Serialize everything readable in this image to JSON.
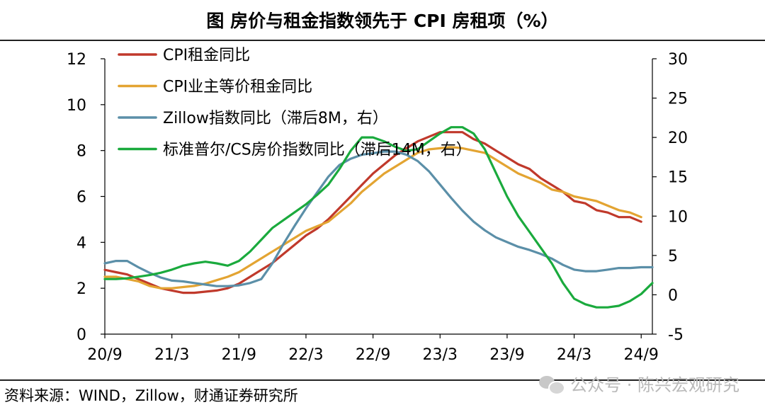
{
  "title": "图  房价与租金指数领先于 CPI 房租项（%）",
  "source": "资料来源：WIND，Zillow，财通证券研究所",
  "watermark": {
    "text": "公众号 · 陈兴宏观研究",
    "icon": "wechat-icon"
  },
  "chart_data": {
    "type": "line",
    "title": "",
    "xlabel": "",
    "ylabel_left": "",
    "ylabel_right": "",
    "ylim_left": [
      0,
      12
    ],
    "yticks_left": [
      0,
      2,
      4,
      6,
      8,
      10,
      12
    ],
    "ylim_right": [
      -5,
      30
    ],
    "yticks_right": [
      -5,
      0,
      5,
      10,
      15,
      20,
      25,
      30
    ],
    "xlim": [
      0,
      49
    ],
    "xtick_labels": [
      "20/9",
      "21/3",
      "21/9",
      "22/3",
      "22/9",
      "23/3",
      "23/9",
      "24/3",
      "24/9"
    ],
    "xtick_positions": [
      0,
      6,
      12,
      18,
      24,
      30,
      36,
      42,
      48
    ],
    "legend_position": "top-left",
    "series": [
      {
        "name": "CPI租金同比",
        "color": "#c0392b",
        "axis": "left",
        "x": [
          0,
          1,
          2,
          3,
          4,
          5,
          6,
          7,
          8,
          9,
          10,
          11,
          12,
          13,
          14,
          15,
          16,
          17,
          18,
          19,
          20,
          21,
          22,
          23,
          24,
          25,
          26,
          27,
          28,
          29,
          30,
          31,
          32,
          33,
          34,
          35,
          36,
          37,
          38,
          39,
          40,
          41,
          42,
          43,
          44,
          45,
          46,
          47,
          48
        ],
        "values": [
          2.8,
          2.7,
          2.6,
          2.4,
          2.2,
          2.0,
          1.9,
          1.8,
          1.8,
          1.85,
          1.9,
          2.0,
          2.2,
          2.5,
          2.8,
          3.1,
          3.5,
          3.9,
          4.3,
          4.6,
          5.0,
          5.5,
          6.0,
          6.5,
          7.0,
          7.4,
          7.8,
          8.1,
          8.4,
          8.6,
          8.8,
          8.8,
          8.8,
          8.5,
          8.3,
          8.0,
          7.7,
          7.4,
          7.2,
          6.8,
          6.5,
          6.2,
          5.8,
          5.7,
          5.4,
          5.3,
          5.1,
          5.1,
          4.9
        ]
      },
      {
        "name": "CPI业主等价租金同比",
        "color": "#e3a432",
        "axis": "left",
        "x": [
          0,
          1,
          2,
          3,
          4,
          5,
          6,
          7,
          8,
          9,
          10,
          11,
          12,
          13,
          14,
          15,
          16,
          17,
          18,
          19,
          20,
          21,
          22,
          23,
          24,
          25,
          26,
          27,
          28,
          29,
          30,
          31,
          32,
          33,
          34,
          35,
          36,
          37,
          38,
          39,
          40,
          41,
          42,
          43,
          44,
          45,
          46,
          47,
          48
        ],
        "values": [
          2.5,
          2.5,
          2.4,
          2.3,
          2.1,
          2.0,
          2.0,
          2.05,
          2.1,
          2.2,
          2.35,
          2.5,
          2.7,
          3.0,
          3.3,
          3.6,
          3.9,
          4.2,
          4.5,
          4.7,
          4.9,
          5.3,
          5.7,
          6.2,
          6.6,
          7.0,
          7.3,
          7.6,
          7.9,
          8.05,
          8.1,
          8.15,
          8.1,
          8.0,
          7.9,
          7.6,
          7.3,
          7.0,
          6.8,
          6.6,
          6.3,
          6.2,
          6.0,
          5.9,
          5.8,
          5.6,
          5.4,
          5.3,
          5.1
        ]
      },
      {
        "name": "Zillow指数同比（滞后8M，右）",
        "color": "#5b8fa8",
        "axis": "right",
        "x": [
          0,
          1,
          2,
          3,
          4,
          5,
          6,
          7,
          8,
          9,
          10,
          11,
          12,
          13,
          14,
          15,
          16,
          17,
          18,
          19,
          20,
          21,
          22,
          23,
          24,
          25,
          26,
          27,
          28,
          29,
          30,
          31,
          32,
          33,
          34,
          35,
          36,
          37,
          38,
          39,
          40,
          41,
          42,
          43,
          44,
          45,
          46,
          47,
          48,
          49
        ],
        "values": [
          4.0,
          4.3,
          4.3,
          3.5,
          2.8,
          2.2,
          1.8,
          1.7,
          1.5,
          1.3,
          1.1,
          1.1,
          1.2,
          1.5,
          2.0,
          4.0,
          6.5,
          8.8,
          11.0,
          13.0,
          15.0,
          16.5,
          17.3,
          17.8,
          18.0,
          18.2,
          18.2,
          17.8,
          17.0,
          15.7,
          14.0,
          12.3,
          10.7,
          9.3,
          8.2,
          7.3,
          6.7,
          6.1,
          5.7,
          5.2,
          4.6,
          3.8,
          3.2,
          3.0,
          3.0,
          3.2,
          3.4,
          3.4,
          3.5,
          3.5
        ]
      },
      {
        "name": "标准普尔/CS房价指数同比（滞后14M，右）",
        "color": "#1aaa3d",
        "axis": "right",
        "x": [
          0,
          1,
          2,
          3,
          4,
          5,
          6,
          7,
          8,
          9,
          10,
          11,
          12,
          13,
          14,
          15,
          16,
          17,
          18,
          19,
          20,
          21,
          22,
          23,
          24,
          25,
          26,
          27,
          28,
          29,
          30,
          31,
          32,
          33,
          34,
          35,
          36,
          37,
          38,
          39,
          40,
          41,
          42,
          43,
          44,
          45,
          46,
          47,
          48,
          49
        ],
        "values": [
          2.0,
          2.0,
          2.1,
          2.3,
          2.5,
          2.8,
          3.2,
          3.7,
          4.0,
          4.2,
          4.0,
          3.7,
          4.3,
          5.5,
          7.0,
          8.5,
          9.5,
          10.5,
          11.5,
          12.7,
          14.0,
          16.0,
          18.3,
          20.0,
          20.0,
          19.5,
          18.8,
          18.3,
          18.5,
          19.5,
          20.5,
          21.3,
          21.3,
          20.5,
          18.5,
          15.5,
          12.5,
          10.0,
          8.0,
          6.0,
          4.0,
          1.5,
          -0.5,
          -1.2,
          -1.6,
          -1.6,
          -1.4,
          -0.8,
          0.1,
          1.5
        ]
      }
    ]
  }
}
